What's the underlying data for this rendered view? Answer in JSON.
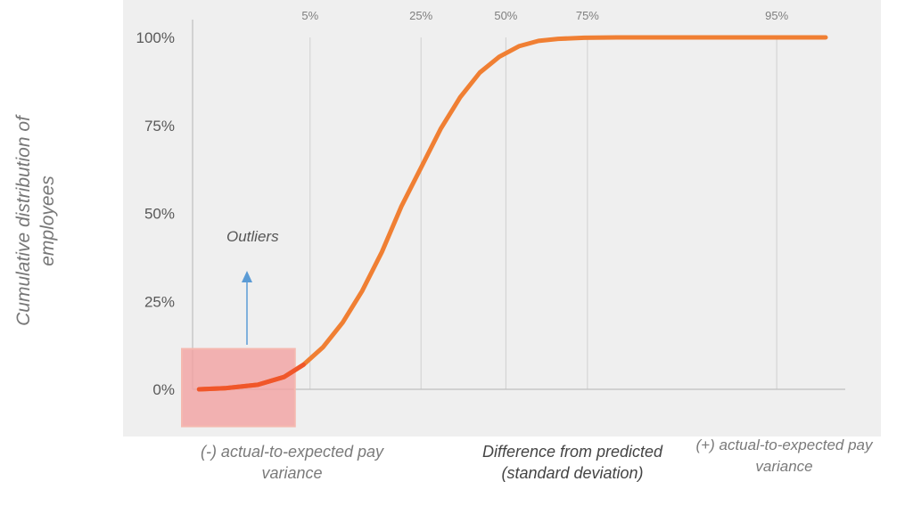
{
  "chart_data": {
    "type": "line",
    "title": "",
    "ylabel": "Cumulative distribution of employees",
    "xlabel": "Difference from predicted (standard deviation)",
    "x_left_label": "(-) actual-to-expected pay variance",
    "x_right_label": "(+) actual-to-expected pay variance",
    "ylim": [
      0,
      100
    ],
    "y_ticks": [
      "0%",
      "25%",
      "50%",
      "75%",
      "100%"
    ],
    "y_tick_values": [
      0,
      25,
      50,
      75,
      100
    ],
    "xlim": [
      0,
      100
    ],
    "percentile_markers": [
      {
        "label": "5%",
        "x": 18
      },
      {
        "label": "25%",
        "x": 35
      },
      {
        "label": "50%",
        "x": 48
      },
      {
        "label": "75%",
        "x": 60.5
      },
      {
        "label": "95%",
        "x": 89.5
      }
    ],
    "series": [
      {
        "color": "#f07f33",
        "x": [
          1,
          5,
          10,
          14,
          17,
          20,
          23,
          26,
          29,
          32,
          35,
          38,
          41,
          44,
          47,
          50,
          53,
          56,
          60,
          65,
          70,
          80,
          90,
          97
        ],
        "values": [
          0,
          0.3,
          1.3,
          3.5,
          7,
          12,
          19,
          28,
          39,
          52,
          63,
          74,
          83,
          90,
          94.5,
          97.5,
          99,
          99.6,
          99.9,
          100,
          100,
          100,
          100,
          100
        ]
      }
    ],
    "outlier_region": {
      "x_from": 0,
      "x_to": 18,
      "y_from": -8,
      "y_to": 12
    },
    "annotation": "Outliers",
    "grid": true
  },
  "colors": {
    "line": "#f07f33",
    "line_highlight": "#f0562a",
    "outlier_box": "#f2a1a1",
    "arrow": "#5b9bd5",
    "plot_background": "#efefef"
  }
}
